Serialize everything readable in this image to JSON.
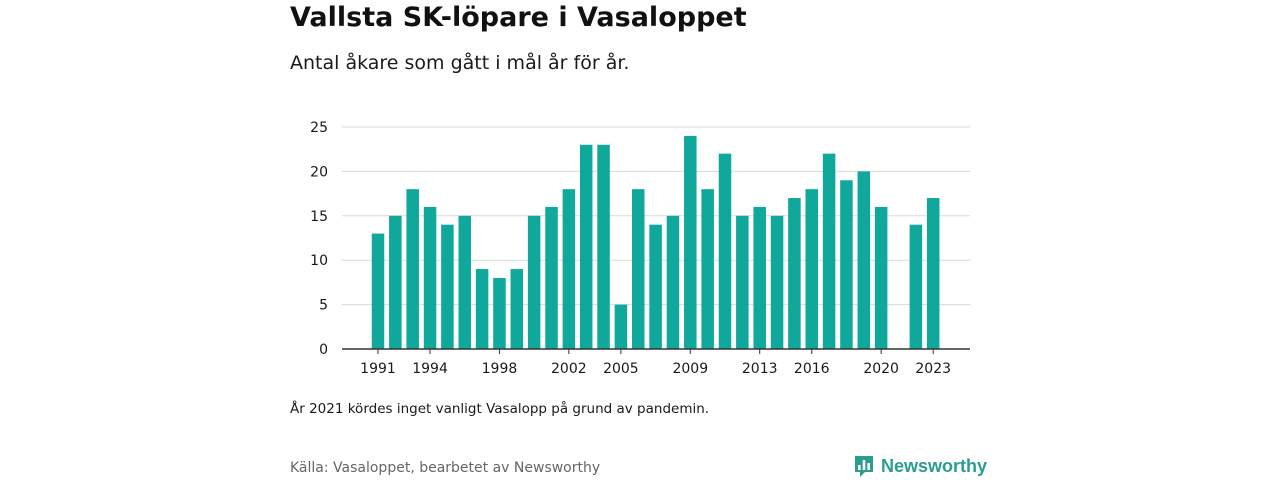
{
  "chart_data": {
    "type": "bar",
    "title": "Vallsta SK-löpare i Vasaloppet",
    "subtitle": "Antal åkare som gått i mål år för år.",
    "x": [
      1991,
      1992,
      1993,
      1994,
      1995,
      1996,
      1997,
      1998,
      1999,
      2000,
      2001,
      2002,
      2003,
      2004,
      2005,
      2006,
      2007,
      2008,
      2009,
      2010,
      2011,
      2012,
      2013,
      2014,
      2015,
      2016,
      2017,
      2018,
      2019,
      2020,
      2021,
      2022,
      2023
    ],
    "values": [
      13,
      15,
      18,
      16,
      14,
      15,
      9,
      8,
      9,
      15,
      16,
      18,
      23,
      23,
      5,
      18,
      14,
      15,
      24,
      18,
      22,
      15,
      16,
      15,
      17,
      18,
      22,
      19,
      20,
      16,
      null,
      14,
      17
    ],
    "xticks": [
      "1991",
      "1994",
      "1998",
      "2002",
      "2005",
      "2009",
      "2013",
      "2016",
      "2020",
      "2023"
    ],
    "yticks": [
      "0",
      "5",
      "10",
      "15",
      "20",
      "25"
    ],
    "ylim": [
      0,
      25
    ],
    "xlabel": "",
    "ylabel": "",
    "grid": true,
    "bar_color": "#0fa89a"
  },
  "note": "År 2021 kördes inget vanligt Vasalopp på grund av pandemin.",
  "source": "Källa: Vasaloppet, bearbetet av Newsworthy",
  "logo": {
    "text": "Newsworthy",
    "icon": "newsworthy-logo-icon",
    "color": "#2a9d8f"
  }
}
